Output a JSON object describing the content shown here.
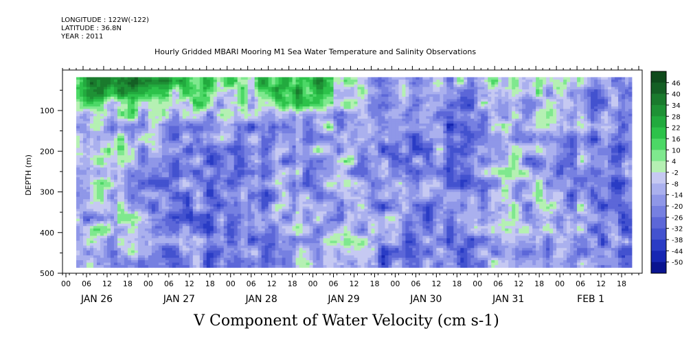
{
  "header": {
    "longitude": "LONGITUDE : 122W(-122)",
    "latitude": "LATITUDE : 36.8N",
    "year": "YEAR : 2011"
  },
  "chart_data": {
    "type": "heatmap",
    "title": "Hourly Gridded MBARI Mooring M1 Sea Water Temperature and Salinity Observations",
    "xlabel": "V Component of Water Velocity (cm s-1)",
    "ylabel": "DEPTH (m)",
    "ylim": [
      500,
      0
    ],
    "y_ticks": [
      100,
      200,
      300,
      400,
      500
    ],
    "x_hour_ticks": [
      "00",
      "06",
      "12",
      "18",
      "00",
      "06",
      "12",
      "18",
      "00",
      "06",
      "12",
      "18",
      "00",
      "06",
      "12",
      "18",
      "00",
      "06",
      "12",
      "18",
      "00",
      "06",
      "12",
      "18",
      "00",
      "06",
      "12",
      "18"
    ],
    "x_date_labels": [
      "JAN 26",
      "JAN 27",
      "JAN 28",
      "JAN 29",
      "JAN 30",
      "JAN 31",
      "FEB  1"
    ],
    "data_start_hour": 3,
    "data_end_hour": 165,
    "depth_range": [
      18,
      485
    ],
    "colorbar": {
      "labels": [
        "46",
        "40",
        "34",
        "28",
        "22",
        "16",
        "10",
        "4",
        "-2",
        "-8",
        "-14",
        "-20",
        "-26",
        "-32",
        "-38",
        "-44",
        "-50"
      ],
      "colors": [
        "#0f4a1c",
        "#145f24",
        "#1a7a2d",
        "#1e9135",
        "#22aa3e",
        "#2dc24a",
        "#4cd866",
        "#7fe88e",
        "#b5f0b3",
        "#c6c9f2",
        "#aab0ee",
        "#8f97e8",
        "#7680e1",
        "#5c67d8",
        "#4352cf",
        "#2a3cc5",
        "#1626b3",
        "#0a1490"
      ],
      "range": [
        -50,
        52
      ]
    },
    "field_description_values": {
      "near_surface_positive_v_jan26_jan29": 25,
      "deep_negative_v_typical": -15
    }
  }
}
